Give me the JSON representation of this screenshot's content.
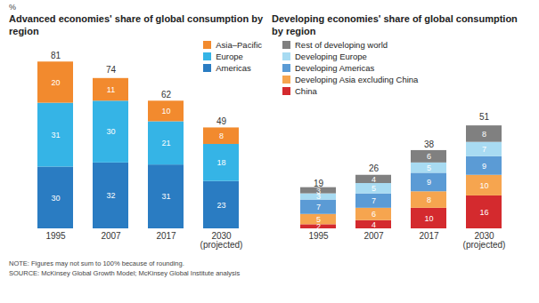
{
  "unit": "%",
  "chart_data": [
    {
      "type": "bar",
      "title": "Advanced economies' share of global consumption by region",
      "categories": [
        "1995",
        "2007",
        "2017",
        "2030 (projected)"
      ],
      "series": [
        {
          "name": "Americas",
          "color": "#2a7cc2",
          "values": [
            30,
            32,
            31,
            23
          ]
        },
        {
          "name": "Europe",
          "color": "#35b4e6",
          "values": [
            31,
            30,
            21,
            18
          ]
        },
        {
          "name": "Asia–Pacific",
          "color": "#f28a2e",
          "values": [
            20,
            11,
            10,
            8
          ]
        }
      ],
      "totals": [
        81,
        74,
        62,
        49
      ],
      "stacked": true,
      "data_labels": true,
      "tick_labels": "x",
      "legend": "top-right"
    },
    {
      "type": "bar",
      "title": "Developing economies' share of global consumption by region",
      "categories": [
        "1995",
        "2007",
        "2017",
        "2030 (projected)"
      ],
      "series": [
        {
          "name": "China",
          "color": "#d42a2e",
          "values": [
            2,
            4,
            10,
            16
          ]
        },
        {
          "name": "Developing Asia excluding China",
          "color": "#f6a54f",
          "values": [
            5,
            6,
            8,
            10
          ]
        },
        {
          "name": "Developing Americas",
          "color": "#5b9bd5",
          "values": [
            7,
            7,
            9,
            9
          ]
        },
        {
          "name": "Developing Europe",
          "color": "#a8dbf2",
          "values": [
            3,
            5,
            5,
            7
          ]
        },
        {
          "name": "Rest of developing world",
          "color": "#808080",
          "values": [
            3,
            4,
            6,
            8
          ]
        }
      ],
      "totals": [
        19,
        26,
        38,
        51
      ],
      "stacked": true,
      "data_labels": true,
      "tick_labels": "x",
      "legend": "top-left"
    }
  ],
  "note": "NOTE: Figures may not sum to 100% because of rounding.",
  "source": "SOURCE: McKinsey Global Growth Model; McKinsey Global Institute analysis"
}
